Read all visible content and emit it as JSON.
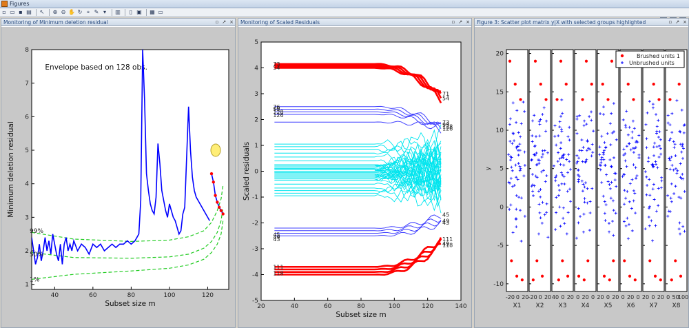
{
  "window": {
    "title": "Figures"
  },
  "toolbar": {
    "icons": [
      "new-figure-icon",
      "open-icon",
      "save-icon",
      "print-icon",
      "pointer-icon",
      "zoom-in-icon",
      "zoom-out-icon",
      "pan-icon",
      "rotate-icon",
      "datacursor-icon",
      "brush-icon",
      "link-icon",
      "colorbar-icon",
      "legend-icon",
      "hide-tools-icon",
      "grid-icon",
      "dock-icon"
    ],
    "dock_icons": [
      "tile-icon",
      "float-icon",
      "close-all-icon"
    ]
  },
  "panels": [
    {
      "title": "Monitoring of Minimum deletion residual"
    },
    {
      "title": "Monitoring of Scaled Residuals"
    },
    {
      "title": "Figure 3: Scatter plot matrix y|X with selected groups highlighted"
    }
  ],
  "colors": {
    "blue": "#0000ff",
    "red": "#ff0000",
    "cyan": "#00e5ee",
    "green": "#22cc22",
    "yellow": "#ffee77",
    "lightblue": "#3f3fff"
  },
  "chart_data": [
    {
      "type": "line",
      "xlabel": "Subset size m",
      "ylabel": "Minimum deletion residual",
      "xlim": [
        28,
        131
      ],
      "ylim": [
        0.85,
        8
      ],
      "xticks": [
        40,
        60,
        80,
        100,
        120
      ],
      "yticks": [
        1,
        2,
        3,
        4,
        5,
        6,
        7,
        8
      ],
      "annotation": "Envelope based on 128 obs.",
      "envelope_labels": [
        {
          "text": "99%",
          "y": 2.6
        },
        {
          "text": "50%",
          "y": 1.9
        },
        {
          "text": "1%",
          "y": 1.15
        }
      ],
      "series": [
        {
          "x": [
            28,
            29,
            30,
            31,
            32,
            33,
            34,
            35,
            36,
            37,
            38,
            39,
            40,
            41,
            42,
            43,
            44,
            45,
            46,
            47,
            48,
            49,
            50,
            52,
            54,
            56,
            58,
            60,
            62,
            64,
            66,
            68,
            70,
            72,
            74,
            76,
            78,
            80,
            82,
            84,
            85,
            86,
            87,
            88,
            89,
            90,
            91,
            92,
            93,
            94,
            95,
            96,
            97,
            98,
            99,
            100,
            101,
            102,
            103,
            104,
            105,
            106,
            107,
            108,
            109,
            110,
            111,
            112,
            113,
            114,
            115,
            116,
            117,
            118,
            119,
            120,
            121
          ],
          "y": [
            2.4,
            2.0,
            1.6,
            1.8,
            2.2,
            1.7,
            2.0,
            2.4,
            2.0,
            2.3,
            1.9,
            2.5,
            2.2,
            1.9,
            1.7,
            2.2,
            1.6,
            2.2,
            2.4,
            2.0,
            2.2,
            2.0,
            2.3,
            2.0,
            2.2,
            2.1,
            1.9,
            2.2,
            2.1,
            2.2,
            2.0,
            2.1,
            2.2,
            2.1,
            2.2,
            2.2,
            2.3,
            2.2,
            2.3,
            2.5,
            3.5,
            8.0,
            6.5,
            4.3,
            3.8,
            3.4,
            3.2,
            3.1,
            3.6,
            5.2,
            4.6,
            3.8,
            3.5,
            3.2,
            3.0,
            3.4,
            3.2,
            3.0,
            2.9,
            2.7,
            2.5,
            2.6,
            3.1,
            3.3,
            4.8,
            6.3,
            5.0,
            4.2,
            3.8,
            3.6,
            3.5,
            3.4,
            3.3,
            3.2,
            3.1,
            3.0,
            2.9
          ]
        },
        {
          "x": [
            122,
            123,
            124,
            125,
            126,
            127,
            128
          ],
          "y": [
            4.3,
            4.05,
            3.65,
            3.45,
            3.3,
            3.2,
            3.1
          ]
        }
      ],
      "envelopes": [
        {
          "level": "99%",
          "x": [
            28,
            50,
            80,
            100,
            110,
            118,
            122,
            125,
            127,
            128
          ],
          "y": [
            2.55,
            2.35,
            2.28,
            2.32,
            2.42,
            2.6,
            2.85,
            3.2,
            3.55,
            3.95
          ]
        },
        {
          "level": "50%",
          "x": [
            28,
            50,
            80,
            100,
            110,
            118,
            122,
            125,
            127,
            128
          ],
          "y": [
            1.95,
            1.8,
            1.78,
            1.82,
            1.9,
            2.08,
            2.28,
            2.55,
            2.9,
            3.3
          ]
        },
        {
          "level": "1%",
          "x": [
            28,
            50,
            80,
            100,
            110,
            118,
            122,
            125,
            127,
            128
          ],
          "y": [
            1.15,
            1.3,
            1.4,
            1.48,
            1.58,
            1.75,
            1.95,
            2.2,
            2.5,
            2.9
          ]
        }
      ],
      "highlight": {
        "x": 122,
        "y": 5.0
      }
    },
    {
      "type": "line",
      "xlabel": "Subset size m",
      "ylabel": "Scaled residuals",
      "xlim": [
        20,
        140
      ],
      "ylim": [
        -5,
        5
      ],
      "xticks": [
        20,
        40,
        60,
        80,
        100,
        120,
        140
      ],
      "yticks": [
        -5,
        -4,
        -3,
        -2,
        -1,
        0,
        1,
        2,
        3,
        4,
        5
      ],
      "cyan_levels": [
        1.05,
        0.95,
        0.85,
        0.7,
        0.55,
        0.4,
        0.25,
        0.1,
        0.0,
        -0.1,
        -0.2,
        -0.35,
        -0.5,
        -0.65,
        -0.75,
        -0.85,
        -0.95
      ],
      "blue_upper": [
        2.5,
        2.4,
        2.3,
        2.2
      ],
      "blue_lower": [
        -2.2,
        -2.3,
        -2.4,
        -2.5
      ],
      "red_upper": [
        4.15,
        4.1,
        4.05,
        4.0
      ],
      "red_lower": [
        -3.7,
        -3.8,
        -3.9,
        -4.0
      ],
      "left_labels": [
        {
          "text": "73",
          "y": 4.15
        },
        {
          "text": "54",
          "y": 4.02
        },
        {
          "text": "76",
          "y": 2.5
        },
        {
          "text": "99",
          "y": 2.42
        },
        {
          "text": "128",
          "y": 2.3
        },
        {
          "text": "126",
          "y": 2.18
        },
        {
          "text": "45",
          "y": -2.45
        },
        {
          "text": "49",
          "y": -2.55
        },
        {
          "text": "43",
          "y": -2.62
        },
        {
          "text": "111",
          "y": -3.7
        },
        {
          "text": "118",
          "y": -3.95
        }
      ],
      "right_labels": [
        {
          "text": "71",
          "y": 3.0
        },
        {
          "text": "54",
          "y": 2.83
        },
        {
          "text": "73",
          "y": 1.9
        },
        {
          "text": "99",
          "y": 1.8
        },
        {
          "text": "128",
          "y": 1.73
        },
        {
          "text": "126",
          "y": 1.65
        },
        {
          "text": "45",
          "y": -1.68
        },
        {
          "text": "49",
          "y": -1.92
        },
        {
          "text": "43",
          "y": -1.98
        },
        {
          "text": "111",
          "y": -2.62
        },
        {
          "text": "49",
          "y": -2.8
        },
        {
          "text": "118",
          "y": -2.85
        }
      ]
    },
    {
      "type": "scatter",
      "ylabel": "y",
      "ylim": [
        -11,
        20.5
      ],
      "yticks": [
        -10,
        -5,
        0,
        5,
        10,
        15,
        20
      ],
      "xlabels": [
        "X1",
        "X2",
        "X3",
        "X4",
        "X5",
        "X6",
        "X7",
        "X8"
      ],
      "xtick_labels": [
        "-20",
        "0",
        "20",
        "-20",
        "0",
        "20",
        "40",
        "0",
        "20",
        "0",
        "20",
        "0",
        "20",
        "0",
        "20",
        "0",
        "20",
        "0",
        "20",
        "0",
        "20",
        "0",
        "50",
        "100"
      ],
      "legend": {
        "position": "top-right",
        "entries": [
          "Brushed units 1",
          "Unbrushed units"
        ]
      },
      "brushed_y": [
        19,
        16,
        14,
        -7,
        -9,
        -9.5
      ],
      "unbrushed_y": [
        12.5,
        11.8,
        11.0,
        10.3,
        9.8,
        9.2,
        8.7,
        8.2,
        7.8,
        7.4,
        7.0,
        6.6,
        6.2,
        5.8,
        5.4,
        5.0,
        4.6,
        4.2,
        3.8,
        3.4,
        3.0,
        2.6,
        2.2,
        1.8,
        1.4,
        1.0,
        0.6,
        0.2,
        -0.2,
        -0.6,
        -1.0,
        -1.5,
        -2.0,
        -2.5,
        -3.0,
        -4.0
      ]
    }
  ]
}
